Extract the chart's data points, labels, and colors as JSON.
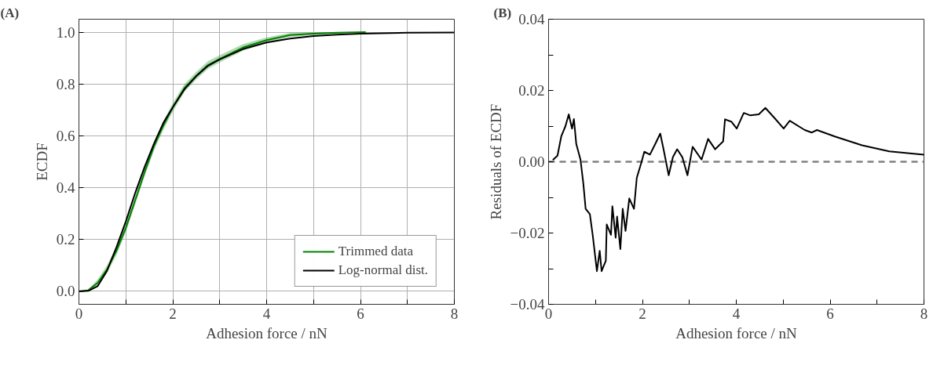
{
  "chart_data": [
    {
      "type": "line",
      "title": "(A)",
      "xlabel": "Adhesion force / nN",
      "ylabel": "ECDF",
      "xlim": [
        0,
        8
      ],
      "ylim": [
        -0.05,
        1.05
      ],
      "xticks": [
        0,
        {
          "value": 1,
          "label": null
        },
        2,
        {
          "value": 3,
          "label": null
        },
        4,
        {
          "value": 5,
          "label": null
        },
        6,
        {
          "value": 7,
          "label": null
        },
        8
      ],
      "yticks": [
        {
          "value": 0,
          "label": "0.0"
        },
        0.2,
        0.4,
        0.6,
        0.8,
        {
          "value": 1,
          "label": "1.0"
        }
      ],
      "grid": true,
      "legend": "bottom right",
      "line_style": "solid",
      "series": [
        {
          "name": "Trimmed data",
          "color": "#008000",
          "x": [
            0,
            0.2,
            0.4,
            0.6,
            0.8,
            1.0,
            1.2,
            1.4,
            1.6,
            1.8,
            2.0,
            2.25,
            2.5,
            2.75,
            3.0,
            3.5,
            4.0,
            4.5,
            5.0,
            5.5,
            6.1
          ],
          "values": [
            0,
            0.004,
            0.033,
            0.085,
            0.157,
            0.245,
            0.352,
            0.46,
            0.56,
            0.64,
            0.71,
            0.785,
            0.832,
            0.873,
            0.897,
            0.941,
            0.969,
            0.989,
            0.994,
            0.998,
            1.0
          ],
          "lower": [
            0,
            0.0,
            0.02,
            0.07,
            0.14,
            0.228,
            0.335,
            0.443,
            0.543,
            0.623,
            0.693,
            0.77,
            0.817,
            0.858,
            0.883,
            0.928,
            0.958,
            0.981,
            0.989,
            0.995,
            1.0
          ],
          "upper": [
            0,
            0.008,
            0.046,
            0.1,
            0.174,
            0.262,
            0.369,
            0.477,
            0.577,
            0.657,
            0.727,
            0.8,
            0.847,
            0.888,
            0.911,
            0.954,
            0.98,
            0.997,
            0.999,
            1.0,
            1.0
          ]
        },
        {
          "name": "Log-normal dist.",
          "color": "#000000",
          "x": [
            0,
            0.2,
            0.4,
            0.6,
            0.8,
            1.0,
            1.2,
            1.4,
            1.6,
            1.8,
            2.0,
            2.25,
            2.5,
            2.75,
            3.0,
            3.5,
            4.0,
            4.5,
            5.0,
            5.5,
            6.0,
            7.0,
            8.0
          ],
          "values": [
            0,
            0.002,
            0.02,
            0.08,
            0.17,
            0.27,
            0.38,
            0.48,
            0.57,
            0.65,
            0.71,
            0.78,
            0.83,
            0.87,
            0.895,
            0.935,
            0.96,
            0.975,
            0.985,
            0.99,
            0.994,
            0.998,
            0.999
          ]
        }
      ]
    },
    {
      "type": "line",
      "title": "(B)",
      "xlabel": "Adhesion force / nN",
      "ylabel": "Residuals of ECDF",
      "xlim": [
        0,
        8
      ],
      "ylim": [
        -0.04,
        0.04
      ],
      "xticks": [
        0,
        {
          "value": 1,
          "label": null
        },
        2,
        {
          "value": 3,
          "label": null
        },
        4,
        {
          "value": 5,
          "label": null
        },
        6,
        {
          "value": 7,
          "label": null
        },
        8
      ],
      "yticks": [
        -0.04,
        {
          "value": -0.03,
          "label": null
        },
        -0.02,
        {
          "value": -0.01,
          "label": null
        },
        {
          "value": 0,
          "label": "0.00"
        },
        {
          "value": 0.01,
          "label": null
        },
        0.02,
        {
          "value": 0.03,
          "label": null
        },
        0.04
      ],
      "grid": false,
      "line_style": "solid",
      "ref_lines": [
        {
          "axis": "y",
          "value": 0,
          "label": null,
          "color": "#808080",
          "line_style": "dashed"
        }
      ],
      "series": [
        {
          "color": "#000000",
          "x": [
            0.1,
            0.19,
            0.27,
            0.36,
            0.43,
            0.5,
            0.54,
            0.59,
            0.68,
            0.74,
            0.79,
            0.88,
            0.94,
            1.03,
            1.09,
            1.13,
            1.22,
            1.24,
            1.33,
            1.36,
            1.43,
            1.46,
            1.53,
            1.58,
            1.64,
            1.72,
            1.82,
            1.88,
            1.98,
            2.04,
            2.16,
            2.27,
            2.38,
            2.45,
            2.56,
            2.65,
            2.74,
            2.85,
            2.96,
            3.07,
            3.26,
            3.4,
            3.55,
            3.72,
            3.76,
            3.9,
            4.01,
            4.16,
            4.3,
            4.48,
            4.62,
            4.82,
            5.01,
            5.14,
            5.46,
            5.61,
            5.72,
            6.1,
            6.68,
            7.26,
            8.0
          ],
          "values": [
            0.0006,
            0.0017,
            0.0071,
            0.01,
            0.0133,
            0.0093,
            0.012,
            0.005,
            0.0006,
            -0.006,
            -0.0132,
            -0.0147,
            -0.0205,
            -0.0307,
            -0.025,
            -0.0307,
            -0.0278,
            -0.0176,
            -0.0205,
            -0.0125,
            -0.0213,
            -0.0154,
            -0.0245,
            -0.0132,
            -0.0194,
            -0.0103,
            -0.0132,
            -0.0045,
            -0.0001,
            0.0028,
            0.002,
            0.0049,
            0.0079,
            0.0035,
            -0.0038,
            0.0013,
            0.0035,
            0.0013,
            -0.0038,
            0.0042,
            0.0006,
            0.0064,
            0.0035,
            0.0057,
            0.0119,
            0.0112,
            0.0093,
            0.0137,
            0.013,
            0.0133,
            0.0151,
            0.0122,
            0.0093,
            0.0115,
            0.0089,
            0.0082,
            0.0089,
            0.0071,
            0.0046,
            0.0029,
            0.002
          ]
        }
      ]
    }
  ]
}
